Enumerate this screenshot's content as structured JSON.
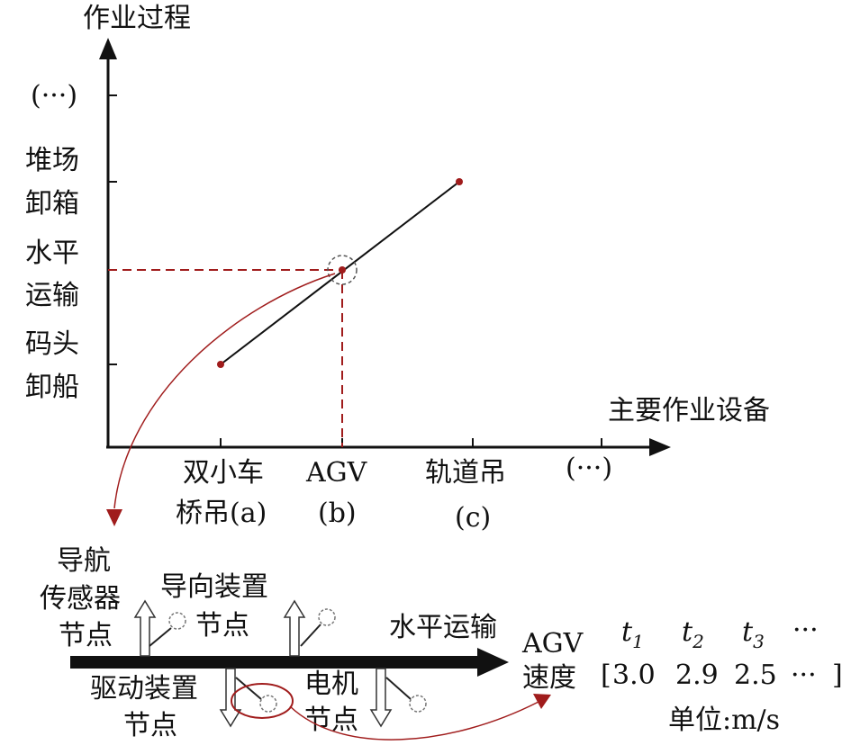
{
  "colors": {
    "axis": "#111111",
    "dashed": "#a01c1c",
    "point": "#a01c1c",
    "arrow_curve": "#a01c1c",
    "bar": "#111111"
  },
  "top_chart": {
    "y_axis_title": "作业过程",
    "x_axis_title": "主要作业设备",
    "y_ticks": [
      {
        "lines": [
          "码头",
          "卸船"
        ]
      },
      {
        "lines": [
          "水平",
          "运输"
        ]
      },
      {
        "lines": [
          "堆场",
          "卸箱"
        ]
      },
      {
        "lines": [
          "(···)"
        ]
      }
    ],
    "x_ticks": [
      {
        "lines": [
          "双小车",
          "桥吊(a)"
        ]
      },
      {
        "lines": [
          "AGV",
          "(b)"
        ]
      },
      {
        "lines": [
          "轨道吊",
          "(c)"
        ]
      },
      {
        "lines": [
          "(···)"
        ]
      }
    ],
    "points": [
      {
        "x": "双小车桥吊(a)",
        "y": "码头卸船"
      },
      {
        "x": "AGV(b)",
        "y": "水平运输"
      },
      {
        "x": "轨道吊(c)",
        "y": "堆场卸箱"
      }
    ],
    "highlighted_point": "AGV(b)"
  },
  "bottom_diagram": {
    "main_arrow_label": "水平运输",
    "nodes": [
      {
        "label_lines": [
          "导航",
          "传感器",
          "节点"
        ],
        "direction": "up"
      },
      {
        "label_lines": [
          "导向装置",
          "节点"
        ],
        "direction": "up"
      },
      {
        "label_lines": [
          "驱动装置",
          "节点"
        ],
        "direction": "down"
      },
      {
        "label_lines": [
          "电机",
          "节点"
        ],
        "direction": "down"
      }
    ],
    "speed_table": {
      "row_label_1": "AGV",
      "row_label_2": "速度",
      "times": [
        {
          "t": "t",
          "sub": "1"
        },
        {
          "t": "t",
          "sub": "2"
        },
        {
          "t": "t",
          "sub": "3"
        },
        {
          "t": "···",
          "sub": ""
        }
      ],
      "open_bracket": "[",
      "close_bracket": "]",
      "values": [
        "3.0",
        "2.9",
        "2.5",
        "···"
      ],
      "unit": "单位:m/s"
    }
  }
}
